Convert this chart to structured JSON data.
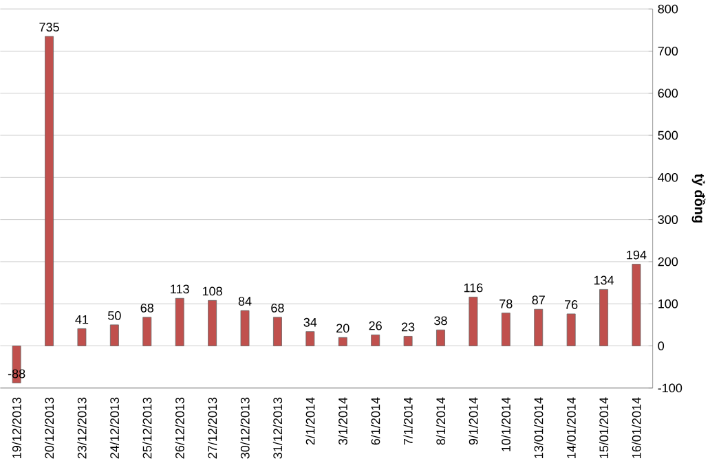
{
  "chart_data": {
    "type": "bar",
    "ylabel": "tỷ đồng",
    "categories": [
      "19/12/2013",
      "20/12/2013",
      "23/12/2013",
      "24/12/2013",
      "25/12/2013",
      "26/12/2013",
      "27/12/2013",
      "30/12/2013",
      "31/12/2013",
      "2/1/2014",
      "3/1/2014",
      "6/1/2014",
      "7/1/2014",
      "8/1/2014",
      "9/1/2014",
      "10/1/2014",
      "13/01/2014",
      "14/01/2014",
      "15/01/2014",
      "16/01/2014"
    ],
    "values": [
      -88,
      735,
      41,
      50,
      68,
      113,
      108,
      84,
      68,
      34,
      20,
      26,
      23,
      38,
      116,
      78,
      87,
      76,
      134,
      194
    ],
    "color": "#c0504d",
    "ylim": [
      -100,
      800
    ],
    "yticks": [
      -100,
      0,
      100,
      200,
      300,
      400,
      500,
      600,
      700,
      800
    ],
    "grid": "y",
    "data_labels": true
  }
}
